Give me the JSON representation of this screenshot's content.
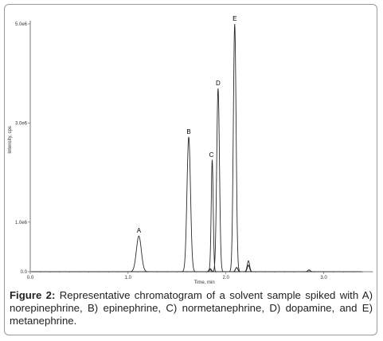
{
  "figure": {
    "caption_label": "Figure 2:",
    "caption_text": " Representative chromatogram of a solvent sample spiked with A) norepinephrine, B) epinephrine, C) normetanephrine, D) dopamine, and E) metanephrine."
  },
  "chart_data": {
    "type": "line",
    "xlabel": "Time, min",
    "ylabel": "Intensity, cps",
    "xlim": [
      0.0,
      3.5
    ],
    "ylim": [
      0,
      5000000.0
    ],
    "x_ticks": [
      {
        "value": 0.0,
        "label": "0.0"
      },
      {
        "value": 1.0,
        "label": "1.0"
      },
      {
        "value": 2.0,
        "label": "2.0"
      },
      {
        "value": 3.0,
        "label": "3.0"
      }
    ],
    "y_ticks": [
      {
        "value": 0,
        "label": "0.0"
      },
      {
        "value": 1000000.0,
        "label": "1.0e6"
      },
      {
        "value": 3000000.0,
        "label": "3.0e6"
      },
      {
        "value": 5000000.0,
        "label": "5.0e6"
      }
    ],
    "grid": false,
    "line_color": "#2a2a2a",
    "series": [
      {
        "peak_label": "A",
        "retention_time": 1.11,
        "height": 720000.0,
        "width": 0.025
      },
      {
        "peak_label": "B",
        "retention_time": 1.62,
        "height": 2720000.0,
        "width": 0.018
      },
      {
        "peak_label": "C",
        "retention_time": 1.86,
        "height": 2250000.0,
        "width": 0.01
      },
      {
        "peak_label": "D",
        "retention_time": 1.92,
        "height": 3700000.0,
        "width": 0.014
      },
      {
        "peak_label": "E",
        "retention_time": 2.09,
        "height": 5000000.0,
        "width": 0.014
      }
    ],
    "minor_peaks": [
      {
        "retention_time": 1.84,
        "height": 60000.0
      },
      {
        "retention_time": 2.11,
        "height": 140000.0
      },
      {
        "retention_time": 2.23,
        "height": 220000.0
      },
      {
        "retention_time": 2.85,
        "height": 60000.0
      }
    ]
  }
}
